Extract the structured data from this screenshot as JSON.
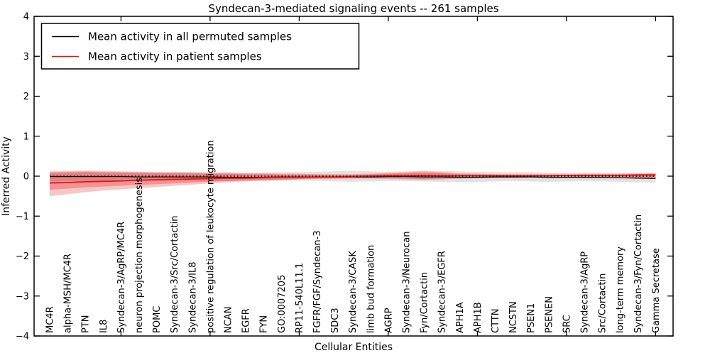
{
  "figure": {
    "title": "Syndecan-3-mediated signaling events -- 261 samples",
    "xlabel": "Cellular Entities",
    "ylabel": "Inferred Activity"
  },
  "legend": {
    "items": [
      {
        "label": "Mean activity in all permuted samples",
        "color": "#000000"
      },
      {
        "label": "Mean activity in patient samples",
        "color": "#ee1111"
      }
    ]
  },
  "chart_data": {
    "type": "line",
    "title": "Syndecan-3-mediated signaling events -- 261 samples",
    "xlabel": "Cellular Entities",
    "ylabel": "Inferred Activity",
    "ylim": [
      -4,
      4
    ],
    "yticks": [
      -4,
      -3,
      -2,
      -1,
      0,
      1,
      2,
      3,
      4
    ],
    "x_major_tick_every": 5,
    "grid": false,
    "legend_position": "upper-left",
    "categories": [
      "MC4R",
      "alpha-MSH/MC4R",
      "PTN",
      "IL8",
      "Syndecan-3/AgRP/MC4R",
      "neuron projection morphogenesis",
      "POMC",
      "Syndecan-3/Src/Cortactin",
      "Syndecan-3/IL8",
      "positive regulation of leukocyte migration",
      "NCAN",
      "EGFR",
      "FYN",
      "GO:0007205",
      "RP11-540L11.1",
      "FGFR/FGF/Syndecan-3",
      "SDC3",
      "Syndecan-3/CASK",
      "limb bud formation",
      "AGRP",
      "Syndecan-3/Neurocan",
      "Fyn/Cortactin",
      "Syndecan-3/EGFR",
      "APH1A",
      "APH1B",
      "CTTN",
      "NCSTN",
      "PSEN1",
      "PSENEN",
      "SRC",
      "Syndecan-3/AgRP",
      "Src/Cortactin",
      "long-term memory",
      "Syndecan-3/Fyn/Cortactin",
      "Gamma Secretase"
    ],
    "series": [
      {
        "name": "Mean activity in all permuted samples",
        "color": "#111111",
        "width": 1.3,
        "values": [
          -0.01,
          -0.01,
          -0.01,
          -0.01,
          -0.01,
          -0.02,
          -0.02,
          -0.02,
          -0.02,
          -0.02,
          -0.03,
          -0.03,
          -0.03,
          -0.02,
          -0.02,
          -0.02,
          -0.02,
          -0.02,
          -0.02,
          -0.01,
          -0.01,
          -0.02,
          -0.02,
          -0.03,
          -0.03,
          -0.02,
          -0.02,
          -0.02,
          -0.03,
          -0.03,
          -0.03,
          -0.03,
          -0.04,
          -0.05,
          -0.06
        ]
      },
      {
        "name": "Mean activity in patient samples",
        "color": "#ee1111",
        "width": 1.8,
        "values": [
          -0.17,
          -0.16,
          -0.14,
          -0.13,
          -0.12,
          -0.1,
          -0.09,
          -0.08,
          -0.07,
          -0.06,
          -0.05,
          -0.05,
          -0.04,
          -0.03,
          -0.03,
          -0.02,
          -0.02,
          -0.01,
          0.0,
          0.01,
          0.01,
          0.02,
          0.01,
          0.01,
          0.01,
          0.01,
          0.01,
          0.01,
          0.01,
          0.02,
          0.02,
          0.02,
          0.02,
          0.03,
          0.03
        ]
      }
    ],
    "bands": [
      {
        "name": "permuted-samples-range",
        "color": "rgba(120,120,120,0.22)",
        "lo": [
          -0.12,
          -0.12,
          -0.13,
          -0.13,
          -0.12,
          -0.12,
          -0.11,
          -0.11,
          -0.12,
          -0.12,
          -0.13,
          -0.12,
          -0.12,
          -0.11,
          -0.11,
          -0.12,
          -0.13,
          -0.14,
          -0.13,
          -0.12,
          -0.12,
          -0.13,
          -0.14,
          -0.15,
          -0.14,
          -0.13,
          -0.12,
          -0.13,
          -0.14,
          -0.13,
          -0.12,
          -0.13,
          -0.14,
          -0.15,
          -0.16
        ],
        "hi": [
          0.1,
          0.11,
          0.12,
          0.11,
          0.1,
          0.1,
          0.09,
          0.1,
          0.11,
          0.1,
          0.1,
          0.09,
          0.09,
          0.1,
          0.1,
          0.11,
          0.12,
          0.13,
          0.12,
          0.11,
          0.12,
          0.14,
          0.13,
          0.12,
          0.11,
          0.1,
          0.1,
          0.1,
          0.09,
          0.09,
          0.08,
          0.08,
          0.08,
          0.07,
          0.07
        ]
      },
      {
        "name": "patient-samples-range-outer",
        "color": "rgba(230,30,30,0.26)",
        "lo": [
          -0.5,
          -0.45,
          -0.4,
          -0.36,
          -0.33,
          -0.3,
          -0.27,
          -0.24,
          -0.21,
          -0.18,
          -0.15,
          -0.13,
          -0.11,
          -0.1,
          -0.08,
          -0.07,
          -0.07,
          -0.06,
          -0.06,
          -0.07,
          -0.08,
          -0.09,
          -0.08,
          -0.06,
          -0.05,
          -0.05,
          -0.05,
          -0.04,
          -0.04,
          -0.04,
          -0.04,
          -0.04,
          -0.05,
          -0.05,
          -0.06
        ],
        "hi": [
          0.12,
          0.13,
          0.14,
          0.13,
          0.12,
          0.11,
          0.1,
          0.1,
          0.09,
          0.08,
          0.08,
          0.07,
          0.07,
          0.06,
          0.06,
          0.05,
          0.05,
          0.05,
          0.06,
          0.08,
          0.1,
          0.12,
          0.1,
          0.07,
          0.06,
          0.05,
          0.05,
          0.05,
          0.05,
          0.05,
          0.06,
          0.06,
          0.06,
          0.07,
          0.08
        ]
      },
      {
        "name": "patient-samples-range-inner",
        "color": "rgba(230,30,30,0.30)",
        "lo": [
          -0.34,
          -0.31,
          -0.28,
          -0.26,
          -0.24,
          -0.22,
          -0.2,
          -0.18,
          -0.16,
          -0.14,
          -0.12,
          -0.1,
          -0.09,
          -0.08,
          -0.07,
          -0.06,
          -0.05,
          -0.05,
          -0.05,
          -0.05,
          -0.06,
          -0.07,
          -0.06,
          -0.05,
          -0.04,
          -0.04,
          -0.04,
          -0.03,
          -0.03,
          -0.03,
          -0.03,
          -0.03,
          -0.03,
          -0.04,
          -0.04
        ],
        "hi": [
          0.08,
          0.09,
          0.1,
          0.09,
          0.09,
          0.08,
          0.08,
          0.07,
          0.07,
          0.06,
          0.06,
          0.05,
          0.05,
          0.04,
          0.04,
          0.04,
          0.03,
          0.03,
          0.04,
          0.06,
          0.07,
          0.08,
          0.07,
          0.05,
          0.04,
          0.04,
          0.03,
          0.03,
          0.03,
          0.03,
          0.04,
          0.04,
          0.04,
          0.05,
          0.06
        ]
      }
    ],
    "zero_line": {
      "value": 0,
      "style": "dotted",
      "color": "#000000"
    }
  }
}
